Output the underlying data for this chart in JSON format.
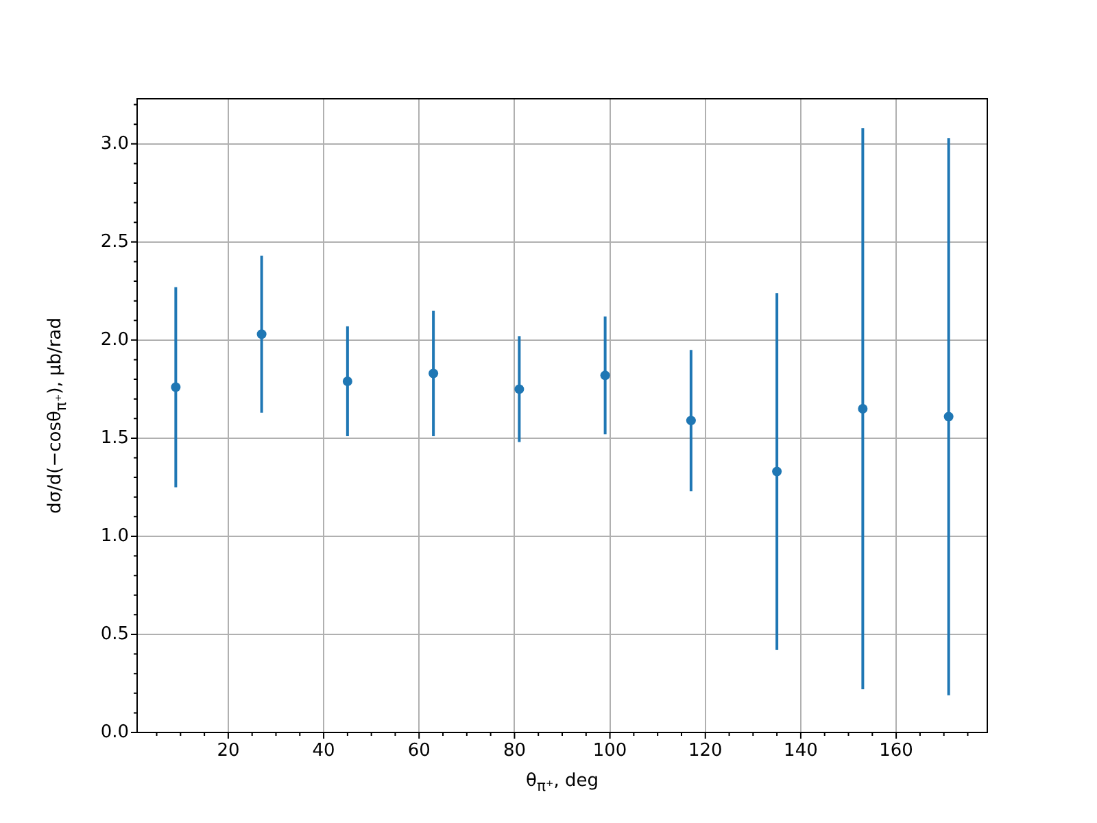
{
  "chart_data": {
    "type": "scatter",
    "xlabel": "θ$_{π⁺}$, deg",
    "ylabel": "dσ/d(−cosθ$_{π⁺}$), μb/rad",
    "x": [
      9,
      27,
      45,
      63,
      81,
      99,
      117,
      135,
      153,
      171
    ],
    "series": [
      {
        "color": "#1f77b4",
        "values": [
          1.76,
          2.03,
          1.79,
          1.83,
          1.75,
          1.82,
          1.59,
          1.33,
          1.65,
          1.61
        ],
        "errors": [
          0.51,
          0.4,
          0.28,
          0.32,
          0.27,
          0.3,
          0.36,
          0.91,
          1.43,
          1.42
        ]
      }
    ],
    "xlim": [
      0.9,
      179.1
    ],
    "xticks": [
      {
        "value": 5,
        "label": null
      },
      {
        "value": 10,
        "label": null
      },
      {
        "value": 15,
        "label": null
      },
      20,
      {
        "value": 25,
        "label": null
      },
      {
        "value": 30,
        "label": null
      },
      {
        "value": 35,
        "label": null
      },
      40,
      {
        "value": 45,
        "label": null
      },
      {
        "value": 50,
        "label": null
      },
      {
        "value": 55,
        "label": null
      },
      60,
      {
        "value": 65,
        "label": null
      },
      {
        "value": 70,
        "label": null
      },
      {
        "value": 75,
        "label": null
      },
      80,
      {
        "value": 85,
        "label": null
      },
      {
        "value": 90,
        "label": null
      },
      {
        "value": 95,
        "label": null
      },
      100,
      {
        "value": 105,
        "label": null
      },
      {
        "value": 110,
        "label": null
      },
      {
        "value": 115,
        "label": null
      },
      120,
      {
        "value": 125,
        "label": null
      },
      {
        "value": 130,
        "label": null
      },
      {
        "value": 135,
        "label": null
      },
      140,
      {
        "value": 145,
        "label": null
      },
      {
        "value": 150,
        "label": null
      },
      {
        "value": 155,
        "label": null
      },
      160,
      {
        "value": 165,
        "label": null
      },
      {
        "value": 170,
        "label": null
      },
      {
        "value": 175,
        "label": null
      }
    ],
    "ylim": [
      0,
      3.23
    ],
    "yticks": [
      {
        "value": 0,
        "label": "0.0"
      },
      {
        "value": 0.1,
        "label": null
      },
      {
        "value": 0.2,
        "label": null
      },
      {
        "value": 0.3,
        "label": null
      },
      {
        "value": 0.4,
        "label": null
      },
      0.5,
      {
        "value": 0.6,
        "label": null
      },
      {
        "value": 0.7,
        "label": null
      },
      {
        "value": 0.8,
        "label": null
      },
      {
        "value": 0.9,
        "label": null
      },
      {
        "value": 1,
        "label": "1.0"
      },
      {
        "value": 1.1,
        "label": null
      },
      {
        "value": 1.2,
        "label": null
      },
      {
        "value": 1.3,
        "label": null
      },
      {
        "value": 1.4,
        "label": null
      },
      1.5,
      {
        "value": 1.6,
        "label": null
      },
      {
        "value": 1.7,
        "label": null
      },
      {
        "value": 1.8,
        "label": null
      },
      {
        "value": 1.9,
        "label": null
      },
      {
        "value": 2,
        "label": "2.0"
      },
      {
        "value": 2.1,
        "label": null
      },
      {
        "value": 2.2,
        "label": null
      },
      {
        "value": 2.3,
        "label": null
      },
      {
        "value": 2.4,
        "label": null
      },
      2.5,
      {
        "value": 2.6,
        "label": null
      },
      {
        "value": 2.7,
        "label": null
      },
      {
        "value": 2.8,
        "label": null
      },
      {
        "value": 2.9,
        "label": null
      },
      {
        "value": 3,
        "label": "3.0"
      },
      {
        "value": 3.1,
        "label": null
      },
      {
        "value": 3.2,
        "label": null
      }
    ],
    "grid": true,
    "legend": false,
    "marker": "circle"
  }
}
